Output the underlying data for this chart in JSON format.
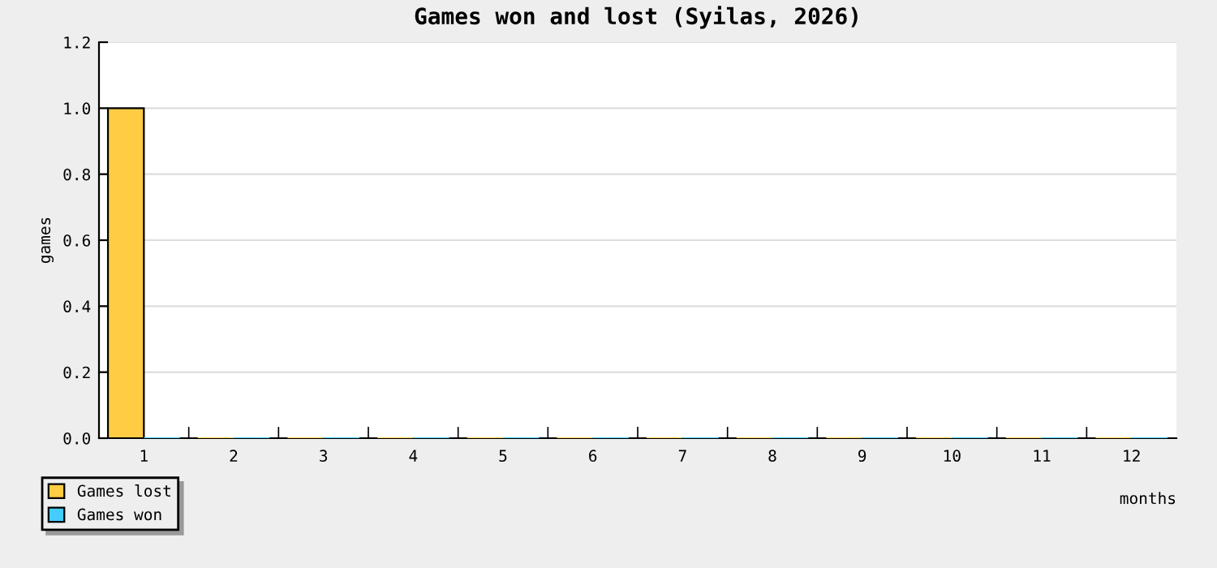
{
  "chart_data": {
    "type": "bar",
    "title": "Games won and lost (Syilas, 2026)",
    "xlabel": "months",
    "ylabel": "games",
    "categories": [
      "1",
      "2",
      "3",
      "4",
      "5",
      "6",
      "7",
      "8",
      "9",
      "10",
      "11",
      "12"
    ],
    "series": [
      {
        "name": "Games lost",
        "color": "#ffcc44",
        "values": [
          1,
          0,
          0,
          0,
          0,
          0,
          0,
          0,
          0,
          0,
          0,
          0
        ]
      },
      {
        "name": "Games won",
        "color": "#44ccff",
        "values": [
          0,
          0,
          0,
          0,
          0,
          0,
          0,
          0,
          0,
          0,
          0,
          0
        ]
      }
    ],
    "ylim": [
      0,
      1.2
    ],
    "yticks": [
      {
        "value": 0,
        "label": "0.0"
      },
      {
        "value": 0.2,
        "label": "0.2"
      },
      {
        "value": 0.4,
        "label": "0.4"
      },
      {
        "value": 0.6,
        "label": "0.6"
      },
      {
        "value": 0.8,
        "label": "0.8"
      },
      {
        "value": 1.0,
        "label": "1.0"
      },
      {
        "value": 1.2,
        "label": "1.2"
      }
    ],
    "grid": "y",
    "legend": "bottom left"
  }
}
